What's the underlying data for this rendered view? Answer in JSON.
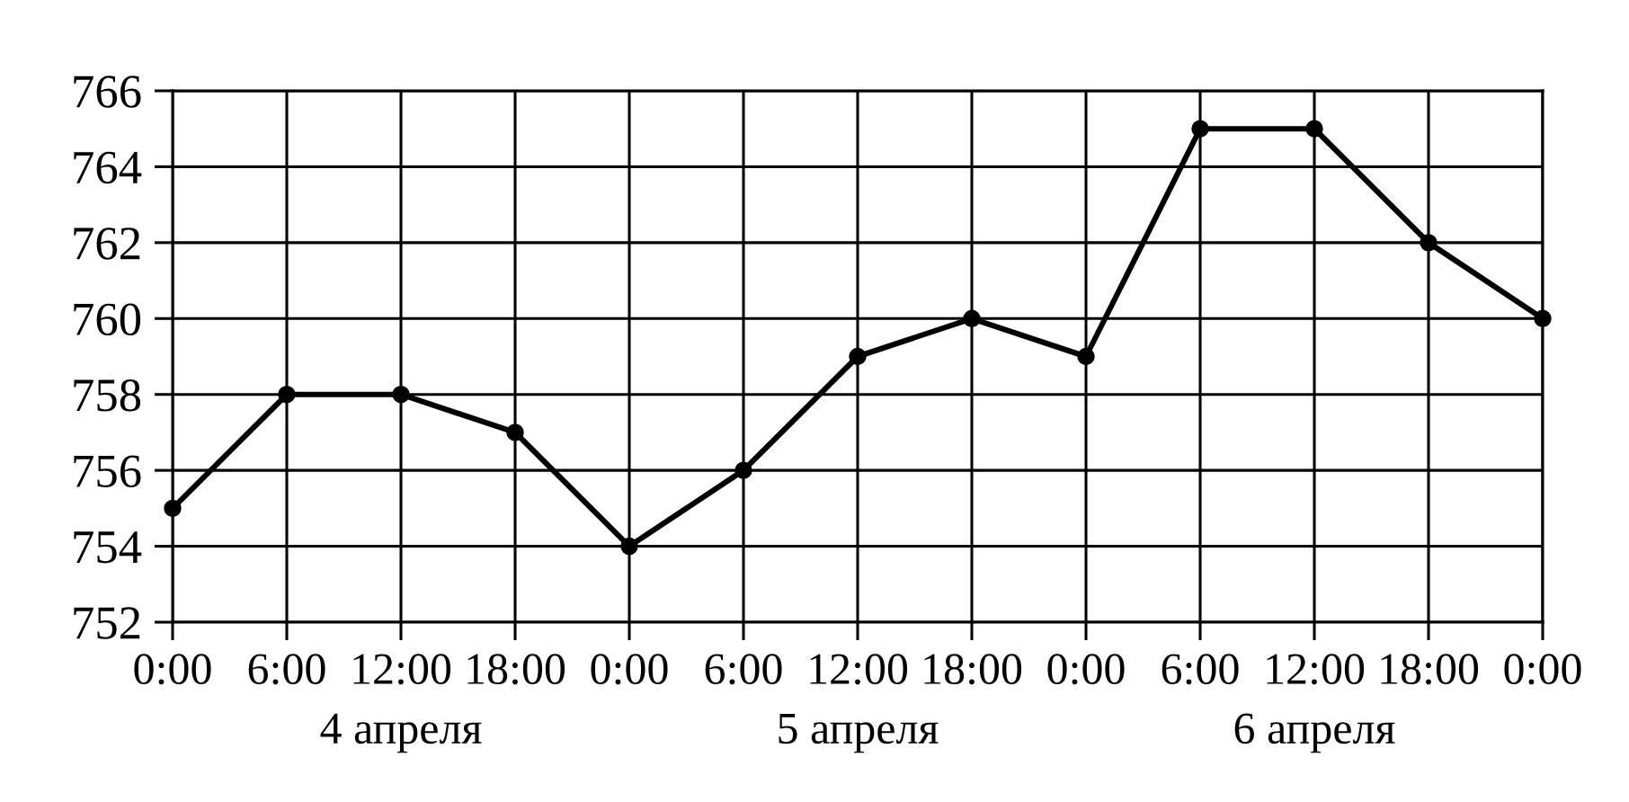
{
  "chart_data": {
    "type": "line",
    "categories": [
      "0:00",
      "6:00",
      "12:00",
      "18:00",
      "0:00",
      "6:00",
      "12:00",
      "18:00",
      "0:00",
      "6:00",
      "12:00",
      "18:00",
      "0:00"
    ],
    "series": [
      {
        "color": "#000000",
        "values": [
          755,
          758,
          758,
          757,
          754,
          756,
          759,
          760,
          759,
          765,
          765,
          762,
          760
        ]
      }
    ],
    "ylim": [
      752,
      766
    ],
    "yticks": [
      752,
      754,
      756,
      758,
      760,
      762,
      764,
      766
    ],
    "annotations": [
      "4 апреля",
      "5 апреля",
      "6 апреля"
    ],
    "grid": true,
    "marker": "circle",
    "line_style": "solid"
  }
}
